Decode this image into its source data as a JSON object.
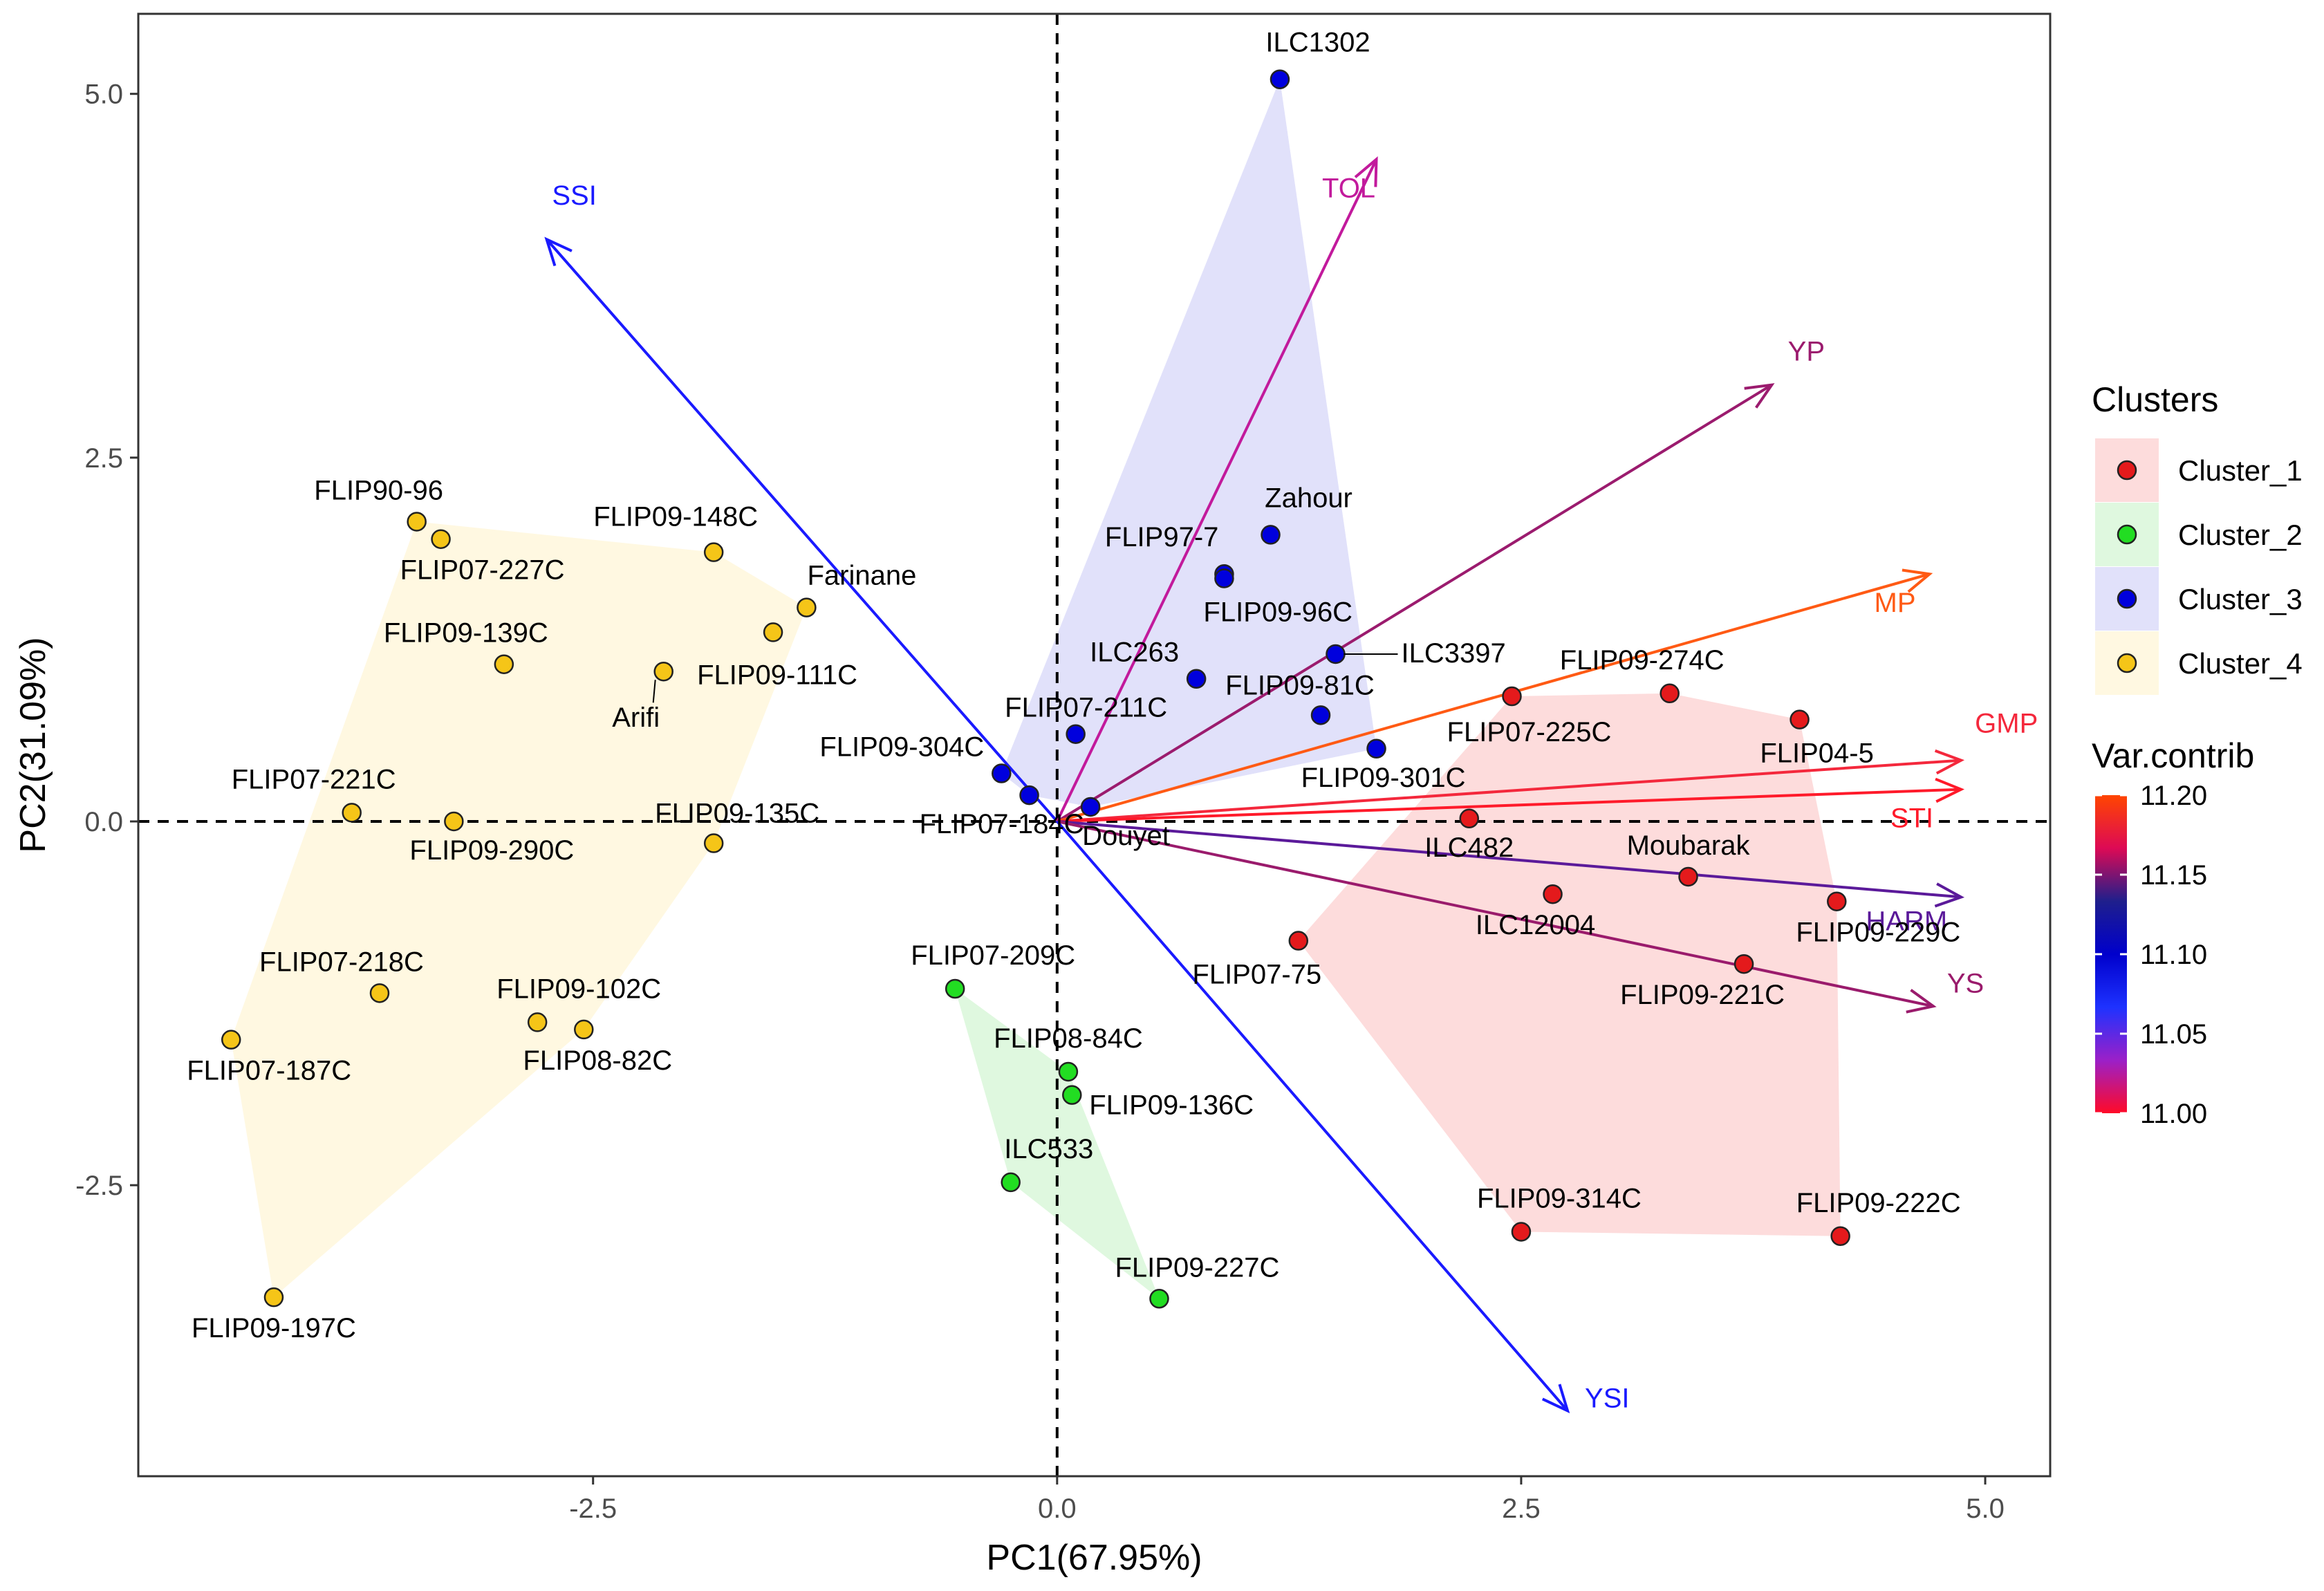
{
  "chart_data": {
    "type": "scatter",
    "subtype": "pca-biplot",
    "xlabel": "PC1(67.95%)",
    "ylabel": "PC2(31.09%)",
    "xlim": [
      -4.95,
      5.35
    ],
    "ylim": [
      -4.5,
      5.55
    ],
    "x_ticks": [
      -2.5,
      0.0,
      2.5,
      5.0
    ],
    "x_tick_labels": [
      "-2.5",
      "0.0",
      "2.5",
      "5.0"
    ],
    "y_ticks": [
      -2.5,
      0.0,
      2.5,
      5.0
    ],
    "y_tick_labels": [
      "-2.5",
      "0.0",
      "2.5",
      "5.0"
    ],
    "grid": false,
    "reference_lines": "dashed at x=0 and y=0",
    "clusters": [
      {
        "name": "Cluster_1",
        "color": "#e41a1c",
        "hull_color": "#fddcdc"
      },
      {
        "name": "Cluster_2",
        "color": "#22dd22",
        "hull_color": "#dff8df"
      },
      {
        "name": "Cluster_3",
        "color": "#0000dd",
        "hull_color": "#e1e1fa"
      },
      {
        "name": "Cluster_4",
        "color": "#f5c518",
        "hull_color": "#fff8e1"
      }
    ],
    "points": [
      {
        "label": "ILC1302",
        "x": 1.2,
        "y": 5.1,
        "cluster": "Cluster_3"
      },
      {
        "label": "Zahour",
        "x": 1.15,
        "y": 1.97,
        "cluster": "Cluster_3"
      },
      {
        "label": "FLIP97-7",
        "x": 0.9,
        "y": 1.7,
        "cluster": "Cluster_3"
      },
      {
        "label": "FLIP09-96C",
        "x": 0.9,
        "y": 1.67,
        "cluster": "Cluster_3"
      },
      {
        "label": "ILC3397",
        "x": 1.5,
        "y": 1.15,
        "cluster": "Cluster_3"
      },
      {
        "label": "ILC263",
        "x": 0.75,
        "y": 0.98,
        "cluster": "Cluster_3"
      },
      {
        "label": "FLIP09-81C",
        "x": 1.42,
        "y": 0.73,
        "cluster": "Cluster_3"
      },
      {
        "label": "FLIP07-211C",
        "x": 0.1,
        "y": 0.6,
        "cluster": "Cluster_3"
      },
      {
        "label": "FLIP09-301C",
        "x": 1.72,
        "y": 0.5,
        "cluster": "Cluster_3"
      },
      {
        "label": "FLIP09-304C",
        "x": -0.3,
        "y": 0.33,
        "cluster": "Cluster_3"
      },
      {
        "label": "FLIP07-184C",
        "x": -0.15,
        "y": 0.18,
        "cluster": "Cluster_3"
      },
      {
        "label": "Douyet",
        "x": 0.18,
        "y": 0.1,
        "cluster": "Cluster_3"
      },
      {
        "label": "FLIP09-274C",
        "x": 3.3,
        "y": 0.88,
        "cluster": "Cluster_1"
      },
      {
        "label": "FLIP07-225C",
        "x": 2.45,
        "y": 0.86,
        "cluster": "Cluster_1"
      },
      {
        "label": "FLIP04-5",
        "x": 4.0,
        "y": 0.7,
        "cluster": "Cluster_1"
      },
      {
        "label": "ILC482",
        "x": 2.22,
        "y": 0.02,
        "cluster": "Cluster_1"
      },
      {
        "label": "Moubarak",
        "x": 3.4,
        "y": -0.38,
        "cluster": "Cluster_1"
      },
      {
        "label": "ILC12004",
        "x": 2.67,
        "y": -0.5,
        "cluster": "Cluster_1"
      },
      {
        "label": "FLIP09-229C",
        "x": 4.2,
        "y": -0.55,
        "cluster": "Cluster_1"
      },
      {
        "label": "FLIP07-75",
        "x": 1.3,
        "y": -0.82,
        "cluster": "Cluster_1"
      },
      {
        "label": "FLIP09-221C",
        "x": 3.7,
        "y": -0.98,
        "cluster": "Cluster_1"
      },
      {
        "label": "FLIP09-314C",
        "x": 2.5,
        "y": -2.82,
        "cluster": "Cluster_1"
      },
      {
        "label": "FLIP09-222C",
        "x": 4.22,
        "y": -2.85,
        "cluster": "Cluster_1"
      },
      {
        "label": "FLIP07-209C",
        "x": -0.55,
        "y": -1.15,
        "cluster": "Cluster_2"
      },
      {
        "label": "FLIP08-84C",
        "x": 0.06,
        "y": -1.72,
        "cluster": "Cluster_2"
      },
      {
        "label": "FLIP09-136C",
        "x": 0.08,
        "y": -1.88,
        "cluster": "Cluster_2"
      },
      {
        "label": "ILC533",
        "x": -0.25,
        "y": -2.48,
        "cluster": "Cluster_2"
      },
      {
        "label": "FLIP09-227C",
        "x": 0.55,
        "y": -3.28,
        "cluster": "Cluster_2"
      },
      {
        "label": "FLIP90-96",
        "x": -3.45,
        "y": 2.06,
        "cluster": "Cluster_4"
      },
      {
        "label": "FLIP07-227C",
        "x": -3.32,
        "y": 1.94,
        "cluster": "Cluster_4"
      },
      {
        "label": "FLIP09-148C",
        "x": -1.85,
        "y": 1.85,
        "cluster": "Cluster_4"
      },
      {
        "label": "Farinane",
        "x": -1.35,
        "y": 1.47,
        "cluster": "Cluster_4"
      },
      {
        "label": "FLIP09-111C",
        "x": -1.53,
        "y": 1.3,
        "cluster": "Cluster_4"
      },
      {
        "label": "FLIP09-139C",
        "x": -2.98,
        "y": 1.08,
        "cluster": "Cluster_4"
      },
      {
        "label": "Arifi",
        "x": -2.12,
        "y": 1.03,
        "cluster": "Cluster_4"
      },
      {
        "label": "FLIP07-221C",
        "x": -3.8,
        "y": 0.06,
        "cluster": "Cluster_4"
      },
      {
        "label": "FLIP09-290C",
        "x": -3.25,
        "y": 0.0,
        "cluster": "Cluster_4"
      },
      {
        "label": "FLIP09-135C",
        "x": -1.85,
        "y": -0.15,
        "cluster": "Cluster_4"
      },
      {
        "label": "FLIP07-218C",
        "x": -3.65,
        "y": -1.18,
        "cluster": "Cluster_4"
      },
      {
        "label": "FLIP09-102C",
        "x": -2.8,
        "y": -1.38,
        "cluster": "Cluster_4"
      },
      {
        "label": "FLIP08-82C",
        "x": -2.55,
        "y": -1.43,
        "cluster": "Cluster_4"
      },
      {
        "label": "FLIP07-187C",
        "x": -4.45,
        "y": -1.5,
        "cluster": "Cluster_4"
      },
      {
        "label": "FLIP09-197C",
        "x": -4.22,
        "y": -3.27,
        "cluster": "Cluster_4"
      }
    ],
    "variables": [
      {
        "name": "SSI",
        "x": -2.75,
        "y": 4.0,
        "color": "#1a1aff",
        "contrib": 11.06
      },
      {
        "name": "TOL",
        "x": 1.72,
        "y": 4.55,
        "color": "#c21a9c",
        "contrib": 11.03
      },
      {
        "name": "YP",
        "x": 3.85,
        "y": 3.0,
        "color": "#9b1b6e",
        "contrib": 11.08
      },
      {
        "name": "MP",
        "x": 4.7,
        "y": 1.7,
        "color": "#ff5a14",
        "contrib": 11.2
      },
      {
        "name": "GMP",
        "x": 4.87,
        "y": 0.42,
        "color": "#f4283c",
        "contrib": 11.17
      },
      {
        "name": "STI",
        "x": 4.87,
        "y": 0.22,
        "color": "#ff1a2a",
        "contrib": 11.0
      },
      {
        "name": "HARM",
        "x": 4.87,
        "y": -0.52,
        "color": "#5b1a9a",
        "contrib": 11.11
      },
      {
        "name": "YS",
        "x": 4.72,
        "y": -1.27,
        "color": "#9a1b6c",
        "contrib": 11.09
      },
      {
        "name": "YSI",
        "x": 2.75,
        "y": -4.05,
        "color": "#1a1aff",
        "contrib": 11.05
      }
    ],
    "legend": {
      "clusters_title": "Clusters",
      "entries": [
        "Cluster_1",
        "Cluster_2",
        "Cluster_3",
        "Cluster_4"
      ],
      "contrib_title": "Var.contrib",
      "contrib_ticks": [
        "11.20",
        "11.15",
        "11.10",
        "11.05",
        "11.00"
      ],
      "contrib_range": [
        11.0,
        11.2
      ],
      "gradient": [
        "#ff4500",
        "#dd0a55",
        "#1f1f8c",
        "#0000cc",
        "#1e32ff",
        "#9b20c8",
        "#ff0a28"
      ],
      "placement": "right"
    }
  }
}
